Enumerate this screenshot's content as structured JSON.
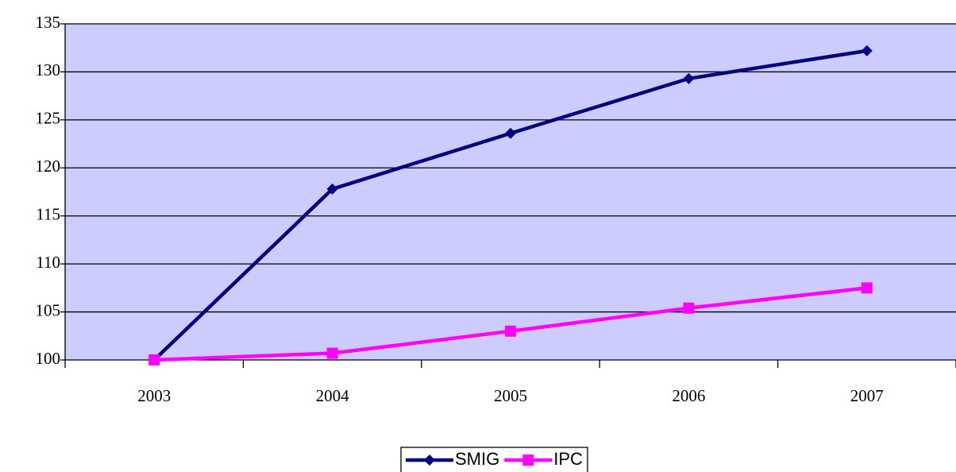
{
  "chart_data": {
    "type": "line",
    "categories": [
      "2003",
      "2004",
      "2005",
      "2006",
      "2007"
    ],
    "series": [
      {
        "name": "SMIG",
        "color": "#000080",
        "marker": "diamond",
        "values": [
          100,
          117.8,
          123.6,
          129.3,
          132.2
        ]
      },
      {
        "name": "IPC",
        "color": "#ff00ff",
        "marker": "square",
        "values": [
          100,
          100.7,
          103,
          105.4,
          107.5
        ]
      }
    ],
    "ylim": [
      100,
      135
    ],
    "yticks": [
      100,
      105,
      110,
      115,
      120,
      125,
      130,
      135
    ],
    "grid": true,
    "legend": "bottom"
  }
}
